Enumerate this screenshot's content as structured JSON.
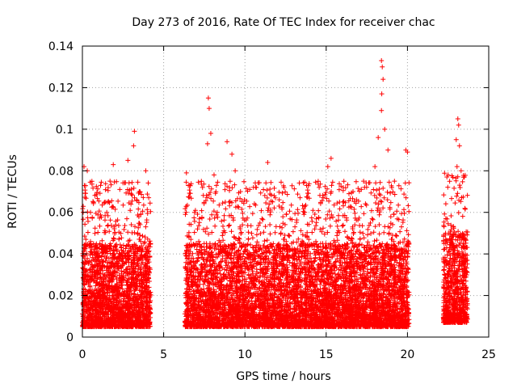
{
  "chart_data": {
    "type": "scatter",
    "title": "Day 273 of 2016, Rate Of TEC Index for receiver chac",
    "xlabel": "GPS time / hours",
    "ylabel": "ROTI / TECUs",
    "xlim": [
      0,
      25
    ],
    "ylim": [
      0,
      0.14
    ],
    "xticks": [
      0,
      5,
      10,
      15,
      20,
      25
    ],
    "xtick_labels": [
      "0",
      "5",
      "10",
      "15",
      "20",
      "25"
    ],
    "yticks": [
      0,
      0.02,
      0.04,
      0.06,
      0.08,
      0.1,
      0.12,
      0.14
    ],
    "ytick_labels": [
      "0",
      "0.02",
      "0.04",
      "0.06",
      "0.08",
      "0.1",
      "0.12",
      "0.14"
    ],
    "grid": true,
    "marker": "+",
    "series": [
      {
        "name": "ROTI",
        "color": "#ff0000",
        "segments": [
          {
            "x_start": 0.0,
            "x_end": 4.2,
            "typical_min": 0.005,
            "typical_max": 0.045
          },
          {
            "x_start": 6.3,
            "x_end": 13.6,
            "typical_min": 0.005,
            "typical_max": 0.045
          },
          {
            "x_start": 13.6,
            "x_end": 20.1,
            "typical_min": 0.005,
            "typical_max": 0.045
          },
          {
            "x_start": 22.2,
            "x_end": 23.7,
            "typical_min": 0.007,
            "typical_max": 0.05
          }
        ],
        "peaks": [
          {
            "x": 0.1,
            "y": 0.082
          },
          {
            "x": 0.3,
            "y": 0.08
          },
          {
            "x": 0.5,
            "y": 0.06
          },
          {
            "x": 1.9,
            "y": 0.083
          },
          {
            "x": 1.7,
            "y": 0.075
          },
          {
            "x": 1.5,
            "y": 0.06
          },
          {
            "x": 2.8,
            "y": 0.085
          },
          {
            "x": 3.2,
            "y": 0.099
          },
          {
            "x": 3.15,
            "y": 0.092
          },
          {
            "x": 3.5,
            "y": 0.07
          },
          {
            "x": 3.9,
            "y": 0.08
          },
          {
            "x": 6.4,
            "y": 0.079
          },
          {
            "x": 6.6,
            "y": 0.073
          },
          {
            "x": 6.9,
            "y": 0.06
          },
          {
            "x": 7.75,
            "y": 0.115
          },
          {
            "x": 7.8,
            "y": 0.11
          },
          {
            "x": 7.9,
            "y": 0.098
          },
          {
            "x": 7.7,
            "y": 0.093
          },
          {
            "x": 8.1,
            "y": 0.078
          },
          {
            "x": 8.3,
            "y": 0.06
          },
          {
            "x": 8.9,
            "y": 0.094
          },
          {
            "x": 9.2,
            "y": 0.088
          },
          {
            "x": 9.4,
            "y": 0.08
          },
          {
            "x": 10.7,
            "y": 0.072
          },
          {
            "x": 11.4,
            "y": 0.084
          },
          {
            "x": 11.8,
            "y": 0.068
          },
          {
            "x": 12.1,
            "y": 0.063
          },
          {
            "x": 15.1,
            "y": 0.082
          },
          {
            "x": 15.3,
            "y": 0.086
          },
          {
            "x": 16.4,
            "y": 0.069
          },
          {
            "x": 17.3,
            "y": 0.075
          },
          {
            "x": 18.0,
            "y": 0.082
          },
          {
            "x": 18.2,
            "y": 0.096
          },
          {
            "x": 18.4,
            "y": 0.133
          },
          {
            "x": 18.45,
            "y": 0.13
          },
          {
            "x": 18.5,
            "y": 0.124
          },
          {
            "x": 18.42,
            "y": 0.117
          },
          {
            "x": 18.4,
            "y": 0.109
          },
          {
            "x": 18.6,
            "y": 0.1
          },
          {
            "x": 18.8,
            "y": 0.09
          },
          {
            "x": 19.2,
            "y": 0.075
          },
          {
            "x": 19.9,
            "y": 0.09
          },
          {
            "x": 20.0,
            "y": 0.089
          },
          {
            "x": 23.1,
            "y": 0.105
          },
          {
            "x": 23.15,
            "y": 0.102
          },
          {
            "x": 23.0,
            "y": 0.095
          },
          {
            "x": 23.2,
            "y": 0.092
          },
          {
            "x": 23.05,
            "y": 0.082
          },
          {
            "x": 23.3,
            "y": 0.08
          },
          {
            "x": 22.5,
            "y": 0.078
          },
          {
            "x": 23.5,
            "y": 0.077
          }
        ]
      }
    ]
  }
}
